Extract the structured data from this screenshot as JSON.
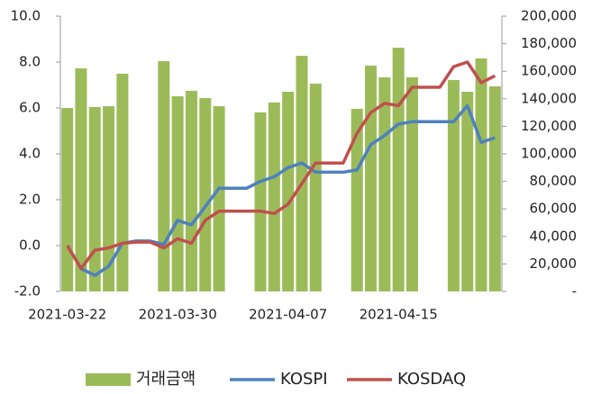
{
  "chart_data": {
    "type": "combo",
    "categories": [
      "2021-03-22",
      null,
      null,
      null,
      null,
      null,
      null,
      null,
      "2021-03-30",
      null,
      null,
      null,
      null,
      null,
      null,
      null,
      "2021-04-07",
      null,
      null,
      null,
      null,
      null,
      null,
      null,
      "2021-04-15",
      null,
      null,
      null,
      null,
      null,
      null,
      null
    ],
    "series": [
      {
        "name": "거래금액",
        "type": "bar",
        "axis": "y2",
        "color": "#9bbb59",
        "values": [
          133300,
          162100,
          134000,
          134600,
          158200,
          null,
          null,
          167300,
          141800,
          145800,
          140500,
          134600,
          null,
          null,
          130100,
          137300,
          145100,
          171200,
          151000,
          null,
          null,
          132700,
          164100,
          155600,
          177100,
          155600,
          null,
          null,
          153600,
          145100,
          169300,
          149000
        ]
      },
      {
        "name": "KOSPI",
        "type": "line",
        "color": "#4f81bd",
        "values": [
          0.0,
          -1.0,
          -1.3,
          -0.9,
          0.1,
          0.2,
          0.2,
          0.05,
          1.1,
          0.9,
          1.7,
          2.5,
          2.5,
          2.5,
          2.8,
          3.0,
          3.4,
          3.6,
          3.2,
          3.2,
          3.2,
          3.3,
          4.4,
          4.8,
          5.3,
          5.4,
          5.4,
          5.4,
          5.4,
          6.1,
          4.5,
          4.7
        ]
      },
      {
        "name": "KOSDAQ",
        "type": "line",
        "color": "#c0504d",
        "values": [
          0.0,
          -1.0,
          -0.2,
          -0.1,
          0.1,
          0.15,
          0.15,
          -0.1,
          0.3,
          0.1,
          1.1,
          1.5,
          1.5,
          1.5,
          1.5,
          1.4,
          1.8,
          2.7,
          3.6,
          3.6,
          3.6,
          4.9,
          5.8,
          6.2,
          6.1,
          6.9,
          6.9,
          6.9,
          7.8,
          8.0,
          7.1,
          7.4
        ]
      }
    ],
    "ylim": [
      -2,
      10
    ],
    "yticks": [
      {
        "value": -2,
        "label": "-2.0"
      },
      {
        "value": 0,
        "label": "0.0"
      },
      {
        "value": 2,
        "label": "2.0"
      },
      {
        "value": 4,
        "label": "4.0"
      },
      {
        "value": 6,
        "label": "6.0"
      },
      {
        "value": 8,
        "label": "8.0"
      },
      {
        "value": 10,
        "label": "10.0"
      }
    ],
    "y2lim": [
      0,
      200000
    ],
    "y2ticks": [
      {
        "value": 0,
        "label": "-"
      },
      {
        "value": 20000,
        "label": "20,000"
      },
      {
        "value": 40000,
        "label": "40,000"
      },
      {
        "value": 60000,
        "label": "60,000"
      },
      {
        "value": 80000,
        "label": "80,000"
      },
      {
        "value": 100000,
        "label": "100,000"
      },
      {
        "value": 120000,
        "label": "120,000"
      },
      {
        "value": 140000,
        "label": "140,000"
      },
      {
        "value": 160000,
        "label": "160,000"
      },
      {
        "value": 180000,
        "label": "180,000"
      },
      {
        "value": 200000,
        "label": "200,000"
      }
    ],
    "grid": false
  }
}
